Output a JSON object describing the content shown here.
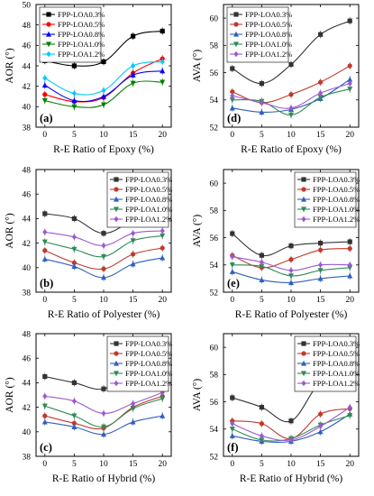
{
  "chart_data": [
    {
      "panel": "(a)",
      "type": "line",
      "xlabel": "R-E Ratio of Epoxy (%)",
      "ylabel": "AOR (°)",
      "x": [
        0,
        5,
        10,
        15,
        20
      ],
      "xticks": [
        0,
        5,
        10,
        15,
        20
      ],
      "ylim": [
        38,
        50
      ],
      "yticks": [
        38,
        40,
        42,
        44,
        46,
        48,
        50
      ],
      "legend": "top-left",
      "series": [
        {
          "name": "FPP-LOA0.3%",
          "color": "#000000",
          "marker": "square",
          "values": [
            44.5,
            44.0,
            44.4,
            46.9,
            47.4
          ]
        },
        {
          "name": "FPP-LOA0.5%",
          "color": "#ff0000",
          "marker": "circle",
          "values": [
            41.2,
            40.5,
            40.9,
            43.3,
            44.7
          ]
        },
        {
          "name": "FPP-LOA0.8%",
          "color": "#0000ff",
          "marker": "triangle-up",
          "values": [
            42.1,
            40.6,
            41.0,
            43.1,
            43.5
          ]
        },
        {
          "name": "FPP-LOA1.0%",
          "color": "#008000",
          "marker": "triangle-down",
          "values": [
            40.6,
            40.0,
            40.2,
            42.3,
            42.4
          ]
        },
        {
          "name": "FPP-LOA1.2%",
          "color": "#00c8ff",
          "marker": "diamond",
          "values": [
            42.8,
            41.3,
            41.6,
            44.0,
            44.4
          ]
        }
      ]
    },
    {
      "panel": "(d)",
      "type": "line",
      "xlabel": "R-E Ratio of Epoxy (%)",
      "ylabel": "AVA (°)",
      "x": [
        0,
        5,
        10,
        15,
        20
      ],
      "xticks": [
        0,
        5,
        10,
        15,
        20
      ],
      "ylim": [
        52,
        61
      ],
      "yticks": [
        52,
        54,
        56,
        58,
        60
      ],
      "legend": "top-left",
      "series": [
        {
          "name": "FPP-LOA0.3%",
          "color": "#333333",
          "marker": "square",
          "values": [
            56.3,
            55.2,
            56.6,
            58.8,
            59.8
          ]
        },
        {
          "name": "FPP-LOA0.5%",
          "color": "#c0392b",
          "marker": "circle",
          "values": [
            54.6,
            53.8,
            54.4,
            55.3,
            56.5
          ]
        },
        {
          "name": "FPP-LOA0.8%",
          "color": "#2e5fbf",
          "marker": "triangle-up",
          "values": [
            53.4,
            53.1,
            53.3,
            54.1,
            55.5
          ]
        },
        {
          "name": "FPP-LOA1.0%",
          "color": "#2e8b57",
          "marker": "triangle-down",
          "values": [
            54.0,
            53.9,
            52.9,
            54.2,
            54.8
          ]
        },
        {
          "name": "FPP-LOA1.2%",
          "color": "#9b59d0",
          "marker": "diamond",
          "values": [
            54.3,
            53.8,
            53.4,
            54.5,
            55.2
          ]
        }
      ]
    },
    {
      "panel": "(b)",
      "type": "line",
      "xlabel": "R-E Ratio of Polyester (%)",
      "ylabel": "AOR (°)",
      "x": [
        0,
        5,
        10,
        15,
        20
      ],
      "xticks": [
        0,
        5,
        10,
        15,
        20
      ],
      "ylim": [
        38,
        48
      ],
      "yticks": [
        38,
        40,
        42,
        44,
        46,
        48
      ],
      "legend": "top-right",
      "series": [
        {
          "name": "FPP-LOA0.3%",
          "color": "#333333",
          "marker": "square",
          "values": [
            44.4,
            44.0,
            42.8,
            43.9,
            45.1
          ]
        },
        {
          "name": "FPP-LOA0.5%",
          "color": "#c0392b",
          "marker": "circle",
          "values": [
            41.4,
            40.4,
            39.9,
            41.1,
            41.6
          ]
        },
        {
          "name": "FPP-LOA0.8%",
          "color": "#2e5fbf",
          "marker": "triangle-up",
          "values": [
            40.7,
            40.1,
            39.2,
            40.3,
            40.8
          ]
        },
        {
          "name": "FPP-LOA1.0%",
          "color": "#2e8b57",
          "marker": "triangle-down",
          "values": [
            42.1,
            41.5,
            40.9,
            42.2,
            42.6
          ]
        },
        {
          "name": "FPP-LOA1.2%",
          "color": "#9b59d0",
          "marker": "diamond",
          "values": [
            42.9,
            42.5,
            41.8,
            42.8,
            43.0
          ]
        }
      ]
    },
    {
      "panel": "(e)",
      "type": "line",
      "xlabel": "R-E Ratio of Polyester (%)",
      "ylabel": "AVA (°)",
      "x": [
        0,
        5,
        10,
        15,
        20
      ],
      "xticks": [
        0,
        5,
        10,
        15,
        20
      ],
      "ylim": [
        52,
        61
      ],
      "yticks": [
        52,
        54,
        56,
        58,
        60
      ],
      "legend": "top-right",
      "series": [
        {
          "name": "FPP-LOA0.3%",
          "color": "#333333",
          "marker": "square",
          "values": [
            56.3,
            54.7,
            55.4,
            55.6,
            55.7
          ]
        },
        {
          "name": "FPP-LOA0.5%",
          "color": "#c0392b",
          "marker": "circle",
          "values": [
            54.7,
            53.8,
            54.4,
            55.1,
            55.2
          ]
        },
        {
          "name": "FPP-LOA0.8%",
          "color": "#2e5fbf",
          "marker": "triangle-up",
          "values": [
            53.5,
            52.9,
            52.7,
            53.0,
            53.2
          ]
        },
        {
          "name": "FPP-LOA1.0%",
          "color": "#2e8b57",
          "marker": "triangle-down",
          "values": [
            54.0,
            53.9,
            53.2,
            53.6,
            53.8
          ]
        },
        {
          "name": "FPP-LOA1.2%",
          "color": "#9b59d0",
          "marker": "diamond",
          "values": [
            54.6,
            54.2,
            53.6,
            54.0,
            54.0
          ]
        }
      ]
    },
    {
      "panel": "(c)",
      "type": "line",
      "xlabel": "R-E Ratio of Hybrid (%)",
      "ylabel": "AOR (°)",
      "x": [
        0,
        5,
        10,
        15,
        20
      ],
      "xticks": [
        0,
        5,
        10,
        15,
        20
      ],
      "ylim": [
        38,
        48
      ],
      "yticks": [
        38,
        40,
        42,
        44,
        46,
        48
      ],
      "legend": "top-right",
      "series": [
        {
          "name": "FPP-LOA0.3%",
          "color": "#333333",
          "marker": "square",
          "values": [
            44.5,
            44.0,
            43.5,
            44.9,
            45.5
          ]
        },
        {
          "name": "FPP-LOA0.5%",
          "color": "#c0392b",
          "marker": "circle",
          "values": [
            41.3,
            40.7,
            40.3,
            42.0,
            42.9
          ]
        },
        {
          "name": "FPP-LOA0.8%",
          "color": "#2e5fbf",
          "marker": "triangle-up",
          "values": [
            40.8,
            40.4,
            39.8,
            40.8,
            41.3
          ]
        },
        {
          "name": "FPP-LOA1.0%",
          "color": "#2e8b57",
          "marker": "triangle-down",
          "values": [
            42.1,
            41.3,
            40.4,
            41.9,
            42.7
          ]
        },
        {
          "name": "FPP-LOA1.2%",
          "color": "#9b59d0",
          "marker": "diamond",
          "values": [
            42.9,
            42.5,
            41.5,
            42.3,
            43.2
          ]
        }
      ]
    },
    {
      "panel": "(f)",
      "type": "line",
      "xlabel": "R-E Ratio of Hybrid (%)",
      "ylabel": "AVA (°)",
      "x": [
        0,
        5,
        10,
        15,
        20
      ],
      "xticks": [
        0,
        5,
        10,
        15,
        20
      ],
      "ylim": [
        52,
        61
      ],
      "yticks": [
        52,
        54,
        56,
        58,
        60
      ],
      "legend": "top-right",
      "series": [
        {
          "name": "FPP-LOA0.3%",
          "color": "#333333",
          "marker": "square",
          "values": [
            56.3,
            55.6,
            54.6,
            57.4,
            57.6
          ]
        },
        {
          "name": "FPP-LOA0.5%",
          "color": "#c0392b",
          "marker": "circle",
          "values": [
            54.6,
            54.4,
            53.3,
            55.1,
            55.5
          ]
        },
        {
          "name": "FPP-LOA0.8%",
          "color": "#2e5fbf",
          "marker": "triangle-up",
          "values": [
            53.5,
            53.1,
            53.1,
            53.8,
            55.1
          ]
        },
        {
          "name": "FPP-LOA1.0%",
          "color": "#2e8b57",
          "marker": "triangle-down",
          "values": [
            54.0,
            53.2,
            53.3,
            54.3,
            55.0
          ]
        },
        {
          "name": "FPP-LOA1.2%",
          "color": "#9b59d0",
          "marker": "diamond",
          "values": [
            54.4,
            53.5,
            53.2,
            54.2,
            55.6
          ]
        }
      ]
    }
  ]
}
